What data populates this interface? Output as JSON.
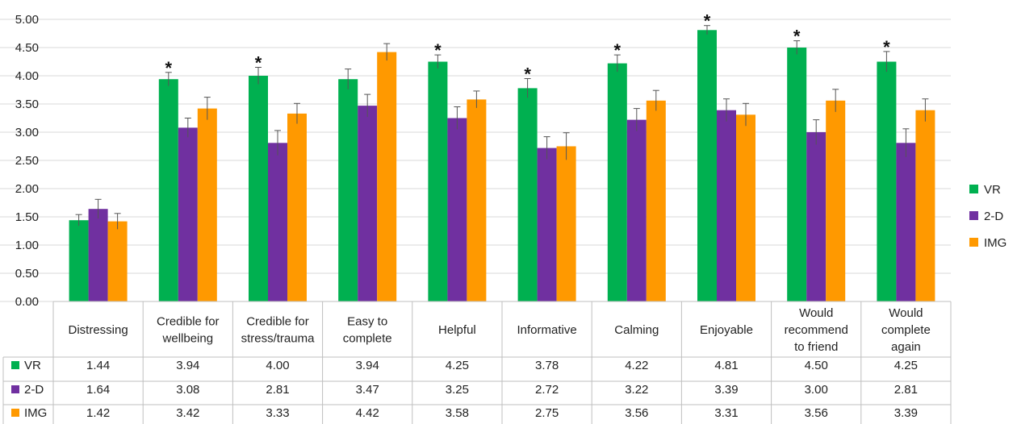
{
  "chart_data": {
    "type": "bar",
    "title": "",
    "xlabel": "",
    "ylabel": "",
    "ylim": [
      0,
      5
    ],
    "y_ticks": [
      "0.00",
      "0.50",
      "1.00",
      "1.50",
      "2.00",
      "2.50",
      "3.00",
      "3.50",
      "4.00",
      "4.50",
      "5.00"
    ],
    "grid": true,
    "legend_position": "right",
    "categories": [
      [
        "Distressing"
      ],
      [
        "Credible for",
        "wellbeing"
      ],
      [
        "Credible for",
        "stress/trauma"
      ],
      [
        "Easy to",
        "complete"
      ],
      [
        "Helpful"
      ],
      [
        "Informative"
      ],
      [
        "Calming"
      ],
      [
        "Enjoyable"
      ],
      [
        "Would",
        "recommend",
        "to friend"
      ],
      [
        "Would",
        "complete",
        "again"
      ]
    ],
    "significance_marker": "*",
    "significant": [
      false,
      true,
      true,
      false,
      true,
      true,
      true,
      true,
      true,
      true
    ],
    "series": [
      {
        "name": "VR",
        "color": "#00b050",
        "values": [
          1.44,
          3.94,
          4.0,
          3.94,
          4.25,
          3.78,
          4.22,
          4.81,
          4.5,
          4.25
        ],
        "labels": [
          "1.44",
          "3.94",
          "4.00",
          "3.94",
          "4.25",
          "3.78",
          "4.22",
          "4.81",
          "4.50",
          "4.25"
        ],
        "errors": [
          0.1,
          0.12,
          0.15,
          0.18,
          0.12,
          0.17,
          0.15,
          0.08,
          0.12,
          0.18
        ]
      },
      {
        "name": "2-D",
        "color": "#7030a0",
        "values": [
          1.64,
          3.08,
          2.81,
          3.47,
          3.25,
          2.72,
          3.22,
          3.39,
          3.0,
          2.81
        ],
        "labels": [
          "1.64",
          "3.08",
          "2.81",
          "3.47",
          "3.25",
          "2.72",
          "3.22",
          "3.39",
          "3.00",
          "2.81"
        ],
        "errors": [
          0.17,
          0.17,
          0.22,
          0.2,
          0.2,
          0.2,
          0.2,
          0.2,
          0.22,
          0.25
        ]
      },
      {
        "name": "IMG",
        "color": "#ff9900",
        "values": [
          1.42,
          3.42,
          3.33,
          4.42,
          3.58,
          2.75,
          3.56,
          3.31,
          3.56,
          3.39
        ],
        "labels": [
          "1.42",
          "3.42",
          "3.33",
          "4.42",
          "3.58",
          "2.75",
          "3.56",
          "3.31",
          "3.56",
          "3.39"
        ],
        "errors": [
          0.14,
          0.2,
          0.18,
          0.15,
          0.15,
          0.24,
          0.18,
          0.2,
          0.2,
          0.2
        ]
      }
    ]
  }
}
